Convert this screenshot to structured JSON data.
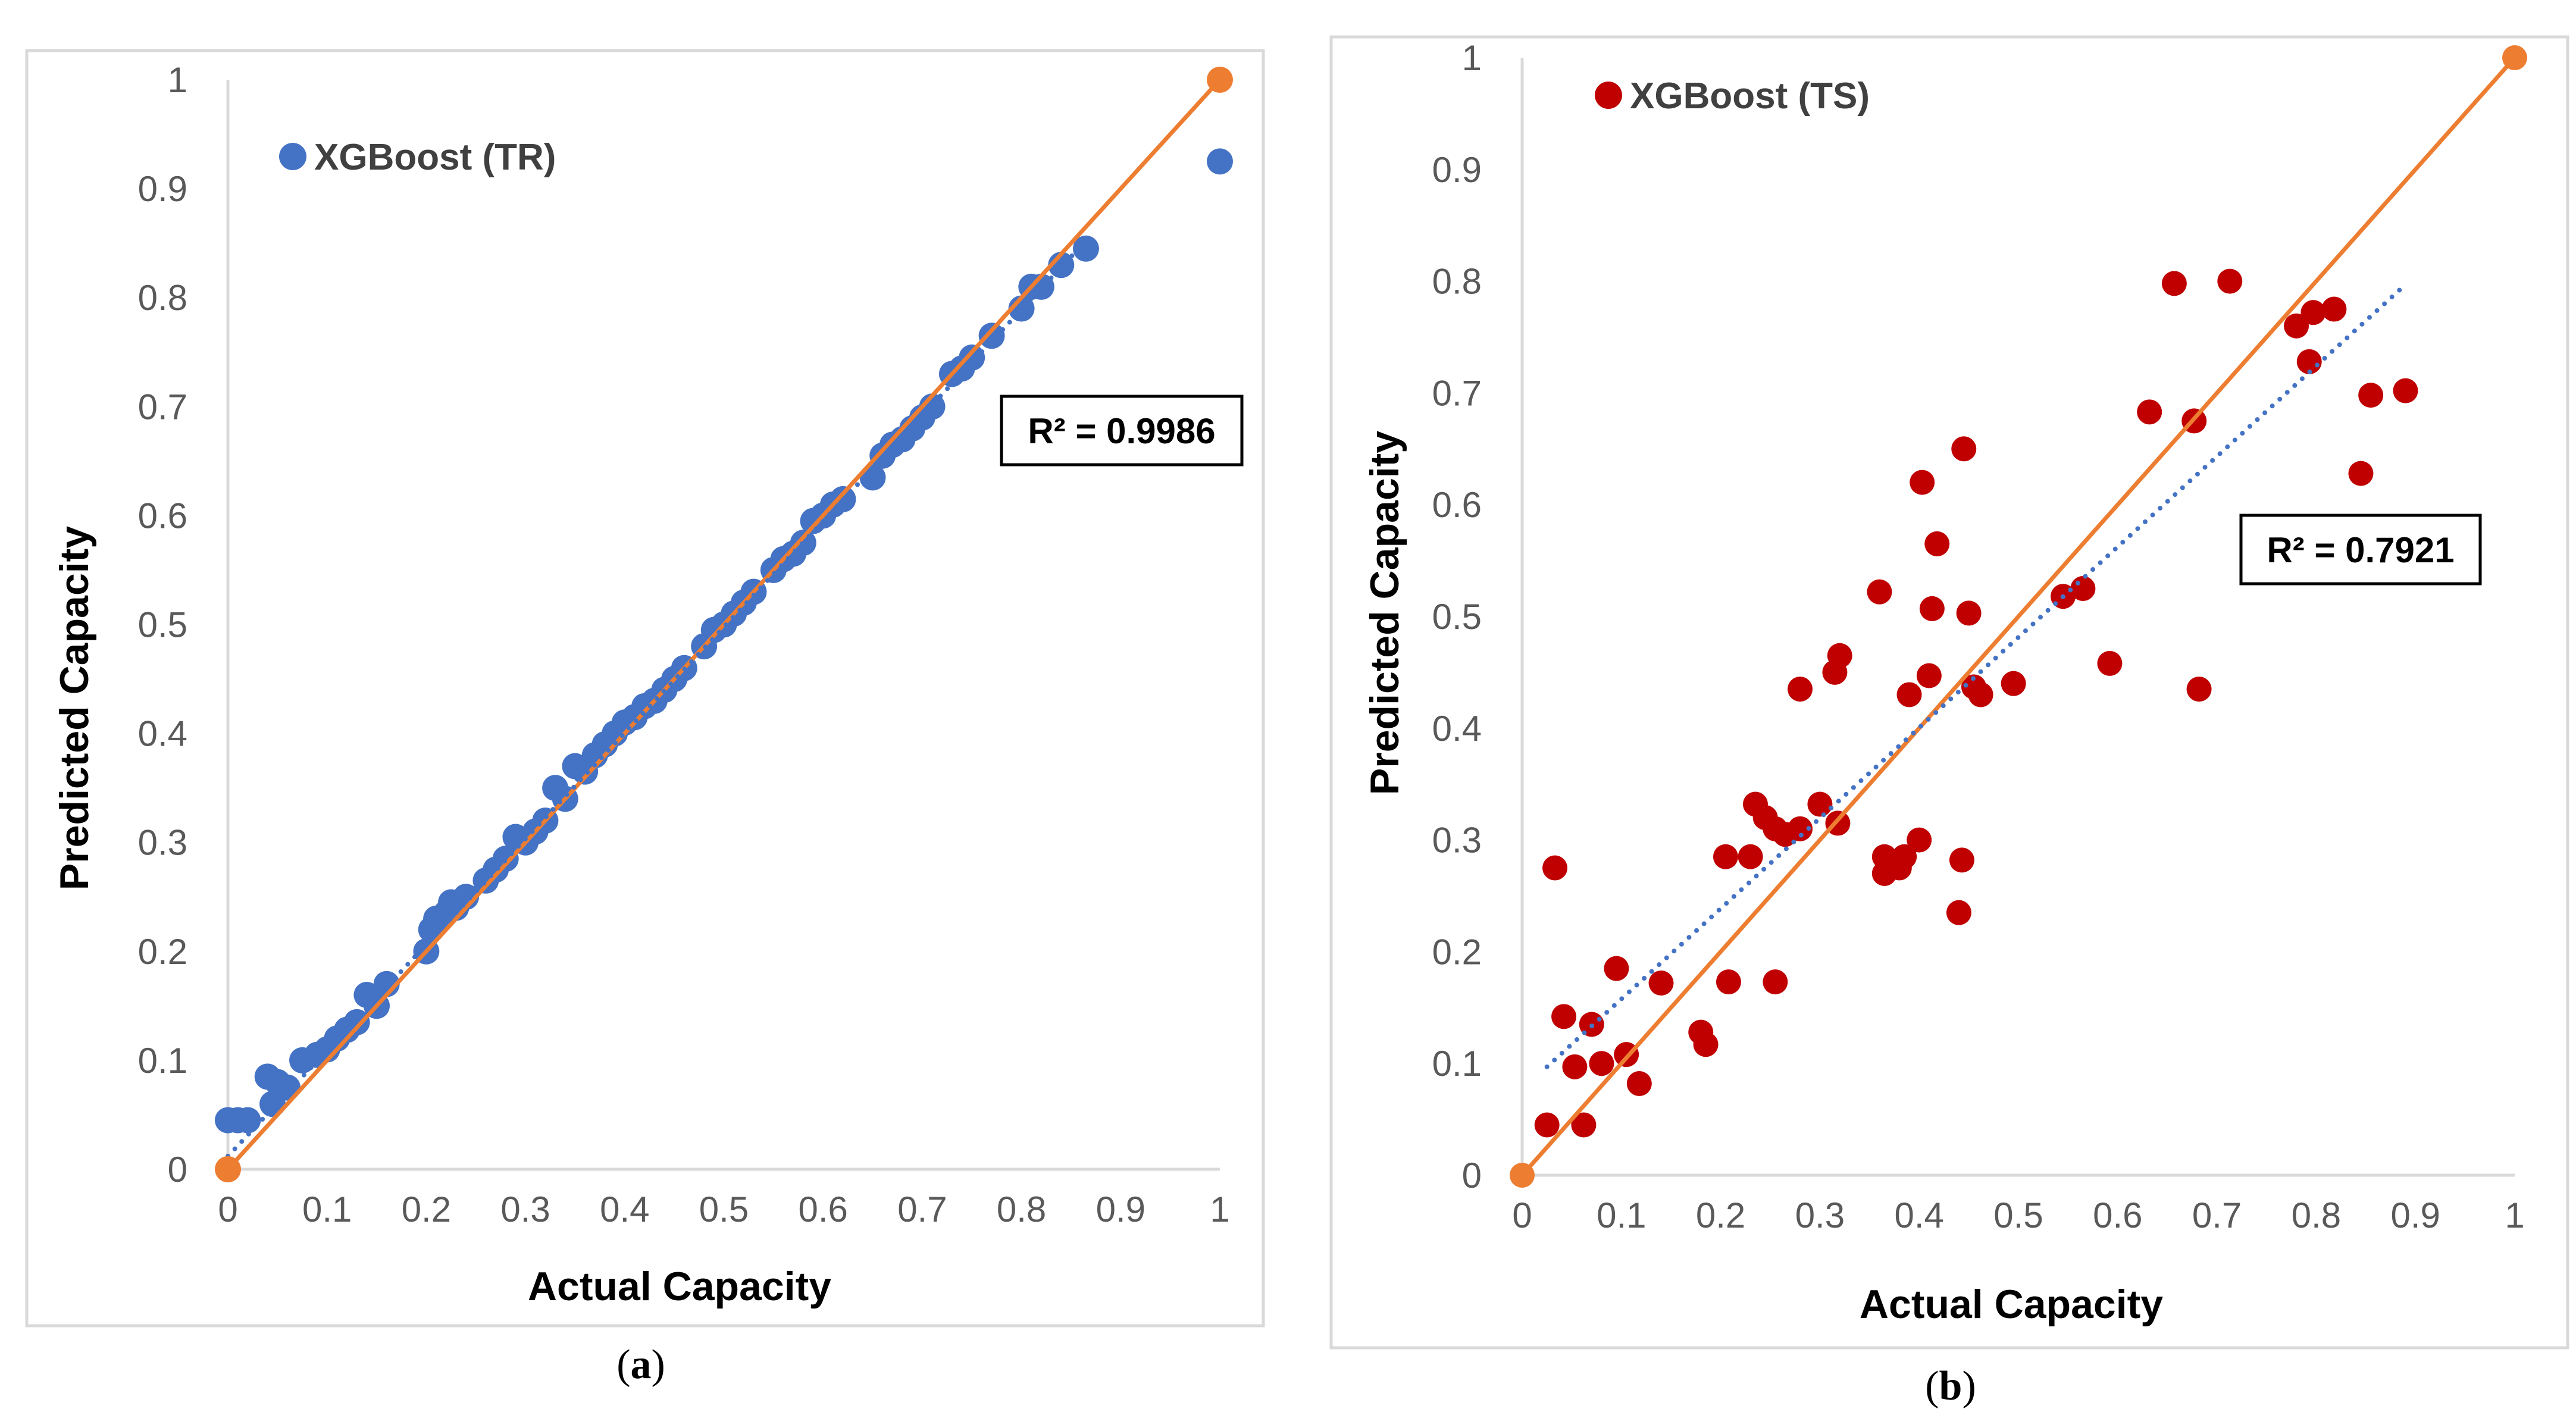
{
  "chart_data": [
    {
      "type": "scatter",
      "panel_label": "a",
      "xlabel": "Actual Capacity",
      "ylabel": "Predicted Capacity",
      "xlim": [
        0,
        1
      ],
      "ylim": [
        0,
        1
      ],
      "xticks": [
        "0",
        "0.1",
        "0.2",
        "0.3",
        "0.4",
        "0.5",
        "0.6",
        "0.7",
        "0.8",
        "0.9",
        "1"
      ],
      "yticks": [
        "0",
        "0.1",
        "0.2",
        "0.3",
        "0.4",
        "0.5",
        "0.6",
        "0.7",
        "0.8",
        "0.9",
        "1"
      ],
      "grid": false,
      "legend": {
        "position": "top-left",
        "label": "XGBoost (TR)"
      },
      "r2_label": "R² = 0.9986",
      "colors": {
        "points": "#4472C4",
        "ideal_line": "#ED7D31",
        "trendline": "#4472C4",
        "endpoints": "#ED7D31"
      },
      "series": [
        {
          "name": "XGBoost (TR)",
          "points": [
            [
              0.0,
              0.045
            ],
            [
              0.01,
              0.045
            ],
            [
              0.02,
              0.045
            ],
            [
              0.04,
              0.085
            ],
            [
              0.05,
              0.08
            ],
            [
              0.06,
              0.075
            ],
            [
              0.045,
              0.06
            ],
            [
              0.075,
              0.1
            ],
            [
              0.09,
              0.105
            ],
            [
              0.1,
              0.11
            ],
            [
              0.11,
              0.12
            ],
            [
              0.12,
              0.128
            ],
            [
              0.13,
              0.135
            ],
            [
              0.14,
              0.16
            ],
            [
              0.15,
              0.15
            ],
            [
              0.16,
              0.17
            ],
            [
              0.2,
              0.2
            ],
            [
              0.205,
              0.22
            ],
            [
              0.21,
              0.23
            ],
            [
              0.22,
              0.235
            ],
            [
              0.225,
              0.245
            ],
            [
              0.23,
              0.24
            ],
            [
              0.24,
              0.25
            ],
            [
              0.26,
              0.265
            ],
            [
              0.27,
              0.275
            ],
            [
              0.28,
              0.285
            ],
            [
              0.29,
              0.305
            ],
            [
              0.3,
              0.3
            ],
            [
              0.31,
              0.31
            ],
            [
              0.32,
              0.32
            ],
            [
              0.33,
              0.35
            ],
            [
              0.34,
              0.34
            ],
            [
              0.35,
              0.37
            ],
            [
              0.36,
              0.365
            ],
            [
              0.37,
              0.38
            ],
            [
              0.38,
              0.39
            ],
            [
              0.39,
              0.4
            ],
            [
              0.4,
              0.41
            ],
            [
              0.41,
              0.415
            ],
            [
              0.42,
              0.425
            ],
            [
              0.43,
              0.43
            ],
            [
              0.44,
              0.44
            ],
            [
              0.45,
              0.45
            ],
            [
              0.46,
              0.46
            ],
            [
              0.48,
              0.48
            ],
            [
              0.49,
              0.495
            ],
            [
              0.5,
              0.5
            ],
            [
              0.51,
              0.51
            ],
            [
              0.52,
              0.52
            ],
            [
              0.53,
              0.53
            ],
            [
              0.55,
              0.55
            ],
            [
              0.56,
              0.56
            ],
            [
              0.57,
              0.565
            ],
            [
              0.58,
              0.575
            ],
            [
              0.59,
              0.595
            ],
            [
              0.6,
              0.6
            ],
            [
              0.61,
              0.61
            ],
            [
              0.62,
              0.615
            ],
            [
              0.65,
              0.635
            ],
            [
              0.66,
              0.655
            ],
            [
              0.67,
              0.665
            ],
            [
              0.68,
              0.67
            ],
            [
              0.69,
              0.68
            ],
            [
              0.7,
              0.69
            ],
            [
              0.71,
              0.7
            ],
            [
              0.73,
              0.73
            ],
            [
              0.74,
              0.735
            ],
            [
              0.75,
              0.745
            ],
            [
              0.77,
              0.765
            ],
            [
              0.8,
              0.79
            ],
            [
              0.81,
              0.81
            ],
            [
              0.82,
              0.81
            ],
            [
              0.84,
              0.83
            ],
            [
              0.865,
              0.845
            ],
            [
              1.0,
              0.925
            ]
          ]
        },
        {
          "name": "Ideal line",
          "type": "line",
          "points": [
            [
              0,
              0
            ],
            [
              1,
              1
            ]
          ]
        },
        {
          "name": "Linear trendline",
          "type": "line",
          "style": "dotted",
          "points": [
            [
              0,
              0.012
            ],
            [
              0.87,
              0.857
            ]
          ]
        }
      ]
    },
    {
      "type": "scatter",
      "panel_label": "b",
      "xlabel": "Actual Capacity",
      "ylabel": "Predicted Capacity",
      "xlim": [
        0,
        1
      ],
      "ylim": [
        0,
        1
      ],
      "xticks": [
        "0",
        "0.1",
        "0.2",
        "0.3",
        "0.4",
        "0.5",
        "0.6",
        "0.7",
        "0.8",
        "0.9",
        "1"
      ],
      "yticks": [
        "0",
        "0.1",
        "0.2",
        "0.3",
        "0.4",
        "0.5",
        "0.6",
        "0.7",
        "0.8",
        "0.9",
        "1"
      ],
      "grid": false,
      "legend": {
        "position": "top-left",
        "label": "XGBoost (TS)"
      },
      "r2_label": "R² = 0.7921",
      "colors": {
        "points": "#C00000",
        "ideal_line": "#ED7D31",
        "trendline": "#4472C4",
        "endpoints": "#ED7D31"
      },
      "series": [
        {
          "name": "XGBoost (TS)",
          "points": [
            [
              0.025,
              0.045
            ],
            [
              0.033,
              0.275
            ],
            [
              0.042,
              0.142
            ],
            [
              0.053,
              0.097
            ],
            [
              0.062,
              0.045
            ],
            [
              0.07,
              0.135
            ],
            [
              0.08,
              0.1
            ],
            [
              0.095,
              0.185
            ],
            [
              0.105,
              0.108
            ],
            [
              0.118,
              0.082
            ],
            [
              0.14,
              0.172
            ],
            [
              0.18,
              0.128
            ],
            [
              0.185,
              0.117
            ],
            [
              0.205,
              0.285
            ],
            [
              0.208,
              0.173
            ],
            [
              0.23,
              0.285
            ],
            [
              0.235,
              0.332
            ],
            [
              0.245,
              0.32
            ],
            [
              0.255,
              0.31
            ],
            [
              0.255,
              0.173
            ],
            [
              0.265,
              0.305
            ],
            [
              0.28,
              0.31
            ],
            [
              0.28,
              0.435
            ],
            [
              0.3,
              0.332
            ],
            [
              0.315,
              0.45
            ],
            [
              0.318,
              0.315
            ],
            [
              0.32,
              0.465
            ],
            [
              0.36,
              0.522
            ],
            [
              0.365,
              0.285
            ],
            [
              0.365,
              0.27
            ],
            [
              0.38,
              0.275
            ],
            [
              0.385,
              0.285
            ],
            [
              0.39,
              0.43
            ],
            [
              0.4,
              0.3
            ],
            [
              0.403,
              0.62
            ],
            [
              0.41,
              0.447
            ],
            [
              0.413,
              0.507
            ],
            [
              0.418,
              0.565
            ],
            [
              0.44,
              0.235
            ],
            [
              0.443,
              0.282
            ],
            [
              0.445,
              0.65
            ],
            [
              0.45,
              0.503
            ],
            [
              0.455,
              0.437
            ],
            [
              0.462,
              0.43
            ],
            [
              0.495,
              0.44
            ],
            [
              0.545,
              0.518
            ],
            [
              0.565,
              0.525
            ],
            [
              0.592,
              0.458
            ],
            [
              0.632,
              0.683
            ],
            [
              0.657,
              0.798
            ],
            [
              0.677,
              0.675
            ],
            [
              0.682,
              0.435
            ],
            [
              0.713,
              0.8
            ],
            [
              0.78,
              0.76
            ],
            [
              0.793,
              0.728
            ],
            [
              0.797,
              0.772
            ],
            [
              0.818,
              0.775
            ],
            [
              0.845,
              0.628
            ],
            [
              0.855,
              0.698
            ],
            [
              0.89,
              0.702
            ]
          ]
        },
        {
          "name": "Ideal line",
          "type": "line",
          "points": [
            [
              0,
              0
            ],
            [
              1,
              1
            ]
          ]
        },
        {
          "name": "Linear trendline",
          "type": "line",
          "style": "dotted",
          "points": [
            [
              0.025,
              0.097
            ],
            [
              0.89,
              0.797
            ]
          ]
        }
      ]
    }
  ]
}
